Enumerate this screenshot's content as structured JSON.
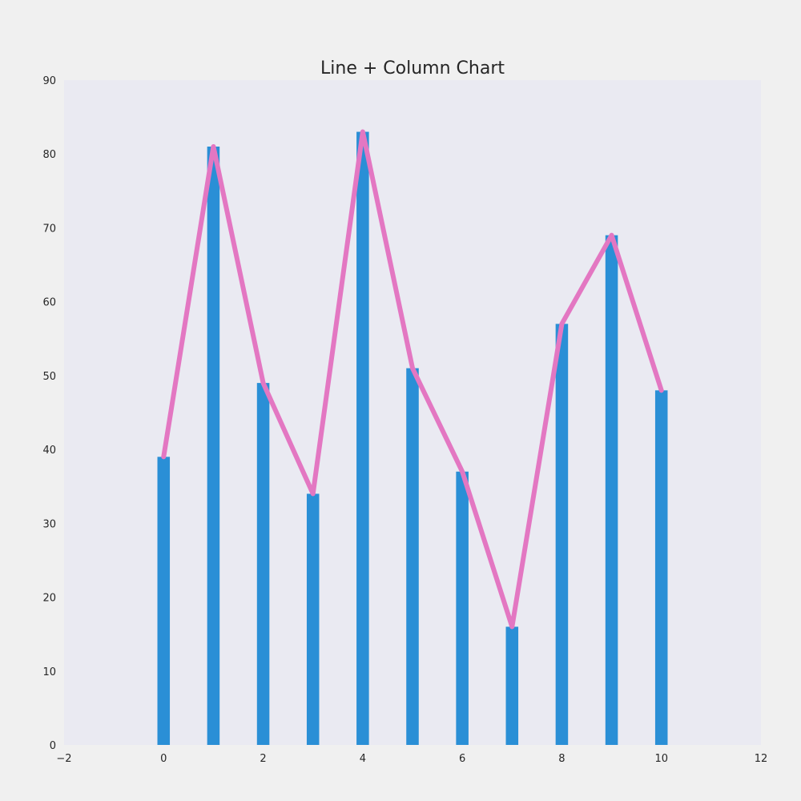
{
  "chart_data": {
    "type": "bar",
    "title": "Line + Column Chart",
    "xlabel": "",
    "ylabel": "",
    "xlim": [
      -2,
      12
    ],
    "ylim": [
      0,
      90
    ],
    "x_ticks": [
      -2,
      0,
      2,
      4,
      6,
      8,
      10,
      12
    ],
    "x_tick_labels": [
      "−2",
      "0",
      "2",
      "4",
      "6",
      "8",
      "10",
      "12"
    ],
    "y_ticks": [
      0,
      10,
      20,
      30,
      40,
      50,
      60,
      70,
      80,
      90
    ],
    "y_tick_labels": [
      "0",
      "10",
      "20",
      "30",
      "40",
      "50",
      "60",
      "70",
      "80",
      "90"
    ],
    "grid": false,
    "legend": "none",
    "x": [
      0,
      1,
      2,
      3,
      4,
      5,
      6,
      7,
      8,
      9,
      10
    ],
    "series": [
      {
        "type": "bar",
        "values": [
          39,
          81,
          49,
          34,
          83,
          51,
          37,
          16,
          57,
          69,
          48
        ],
        "color": "#2a8fd6",
        "bar_width": 0.25
      },
      {
        "type": "line",
        "values": [
          39,
          81,
          49,
          34,
          83,
          51,
          37,
          16,
          57,
          69,
          48
        ],
        "color": "#e377c2"
      }
    ],
    "plot_background": "#eaeaf2",
    "figure_background": "#f0f0f0"
  }
}
